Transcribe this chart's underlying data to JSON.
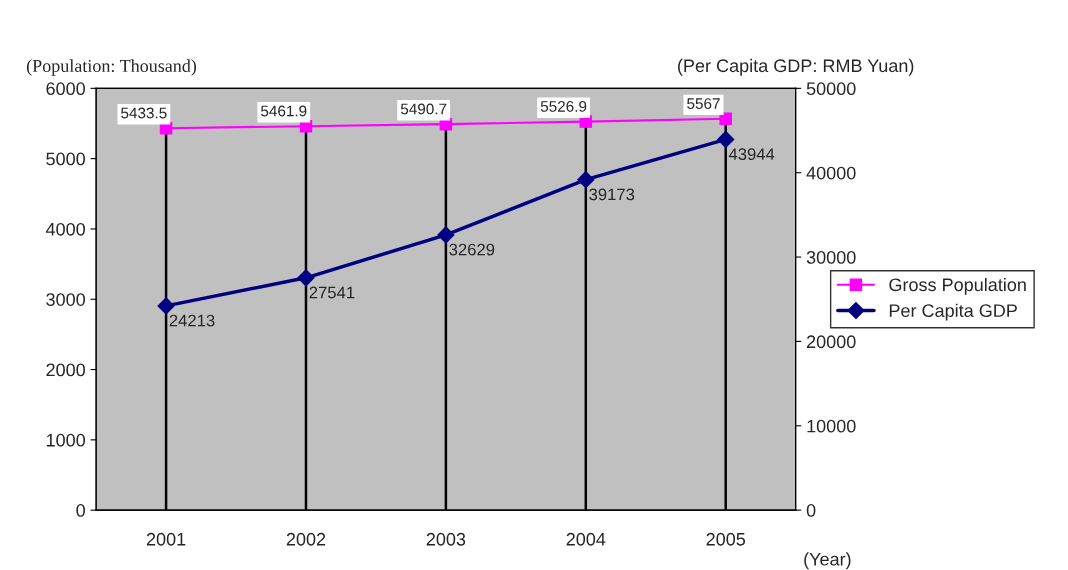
{
  "chart_data": {
    "type": "line",
    "categories": [
      "2001",
      "2002",
      "2003",
      "2004",
      "2005"
    ],
    "series": [
      {
        "name": "Gross Population",
        "color": "#ff00ff",
        "values": [
          5433.5,
          5461.9,
          5490.7,
          5526.9,
          5567
        ],
        "marker": "square"
      },
      {
        "name": "Per Capita GDP",
        "color": "#000080",
        "values": [
          24213,
          27541,
          32629,
          39173,
          43944
        ],
        "axis": "y2",
        "marker": "diamond"
      }
    ],
    "ylabel": "(Population: Thousand)",
    "y2label": "(Per Capita GDP: RMB Yuan)",
    "xlabel": "(Year)",
    "ylim": [
      0,
      6000
    ],
    "yticks": [
      0,
      1000,
      2000,
      3000,
      4000,
      5000,
      6000
    ],
    "y2lim": [
      0,
      50000
    ],
    "y2ticks": [
      0,
      10000,
      20000,
      30000,
      40000,
      50000
    ],
    "ref_lines": [
      {
        "axis": "x",
        "value": "2001"
      },
      {
        "axis": "x",
        "value": "2002"
      },
      {
        "axis": "x",
        "value": "2003"
      },
      {
        "axis": "x",
        "value": "2004"
      },
      {
        "axis": "x",
        "value": "2005"
      }
    ],
    "data_labels": true,
    "grid": false,
    "legend": "right"
  }
}
